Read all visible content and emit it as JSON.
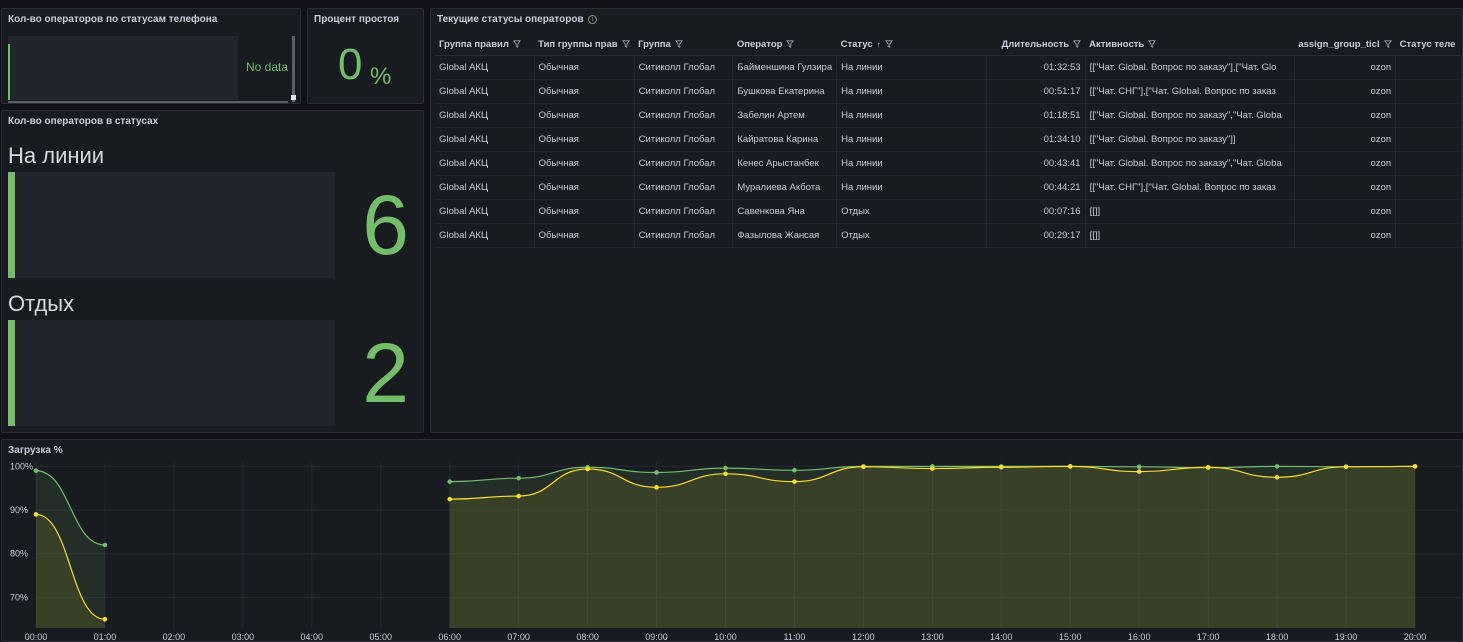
{
  "panel_phone_status": {
    "title": "Кол-во операторов по статусам телефона",
    "no_data": "No data"
  },
  "panel_idle": {
    "title": "Процент простоя",
    "value": "0",
    "unit": "%"
  },
  "panel_status_counts": {
    "title": "Кол-во операторов в статусах",
    "items": [
      {
        "label": "На линии",
        "value": "6"
      },
      {
        "label": "Отдых",
        "value": "2"
      }
    ]
  },
  "panel_current": {
    "title": "Текущие статусы операторов",
    "info_icon": "info-icon",
    "columns": [
      "Группа правил",
      "Тип группы прав",
      "Группа",
      "Оператор",
      "Статус",
      "Длительность",
      "Активность",
      "assign_group_ticl",
      "Статус теле"
    ],
    "rows": [
      [
        "Global АКЦ",
        "Обычная",
        "Ситиколл Глобал",
        "Байменшина Гулзира",
        "На линии",
        "01:32:53",
        "[[\"Чат. Global. Вопрос по заказу\"],[\"Чат. Glo",
        "ozon",
        ""
      ],
      [
        "Global АКЦ",
        "Обычная",
        "Ситиколл Глобал",
        "Бушкова Екатерина",
        "На линии",
        "00:51:17",
        "[[\"Чат. СНГ\"],[\"Чат. Global. Вопрос по заказ",
        "ozon",
        ""
      ],
      [
        "Global АКЦ",
        "Обычная",
        "Ситиколл Глобал",
        "Забелин Артем",
        "На линии",
        "01:18:51",
        "[[\"Чат. Global. Вопрос по заказу\",\"Чат. Globa",
        "ozon",
        ""
      ],
      [
        "Global АКЦ",
        "Обычная",
        "Ситиколл Глобал",
        "Кайратова Карина",
        "На линии",
        "01:34:10",
        "[[\"Чат. Global. Вопрос по заказу\"]]",
        "ozon",
        ""
      ],
      [
        "Global АКЦ",
        "Обычная",
        "Ситиколл Глобал",
        "Кенес Арыстанбек",
        "На линии",
        "00:43:41",
        "[[\"Чат. Global. Вопрос по заказу\",\"Чат. Globa",
        "ozon",
        ""
      ],
      [
        "Global АКЦ",
        "Обычная",
        "Ситиколл Глобал",
        "Муралиева Акбота",
        "На линии",
        "00:44:21",
        "[[\"Чат. СНГ\"],[\"Чат. Global. Вопрос по заказ",
        "ozon",
        ""
      ],
      [
        "Global АКЦ",
        "Обычная",
        "Ситиколл Глобал",
        "Савенкова Яна",
        "Отдых",
        "00:07:16",
        "[[]]",
        "ozon",
        ""
      ],
      [
        "Global АКЦ",
        "Обычная",
        "Ситиколл Глобал",
        "Фазылова Жансая",
        "Отдых",
        "00:29:17",
        "[[]]",
        "ozon",
        ""
      ]
    ]
  },
  "panel_load": {
    "title": "Загрузка %"
  },
  "chart_data": {
    "type": "area",
    "title": "Загрузка %",
    "x": [
      "00:00",
      "01:00",
      "02:00",
      "03:00",
      "04:00",
      "05:00",
      "06:00",
      "07:00",
      "08:00",
      "09:00",
      "10:00",
      "11:00",
      "12:00",
      "13:00",
      "14:00",
      "15:00",
      "16:00",
      "17:00",
      "18:00",
      "19:00",
      "20:00"
    ],
    "y_ticks": [
      "70%",
      "80%",
      "90%",
      "100%"
    ],
    "ylim": [
      63,
      101
    ],
    "series": [
      {
        "color": "#73bf69",
        "values": [
          99,
          82,
          null,
          null,
          null,
          null,
          96.5,
          97.3,
          99.8,
          98.6,
          99.6,
          99.1,
          100,
          100,
          100,
          100,
          99.9,
          99.7,
          100,
          99.9,
          100
        ]
      },
      {
        "color": "#fade2a",
        "values": [
          89,
          65,
          null,
          null,
          null,
          null,
          92.5,
          93.2,
          99.4,
          95.2,
          98.3,
          96.5,
          99.9,
          99.5,
          99.8,
          100,
          98.8,
          99.8,
          97.5,
          99.9,
          100
        ]
      }
    ]
  }
}
